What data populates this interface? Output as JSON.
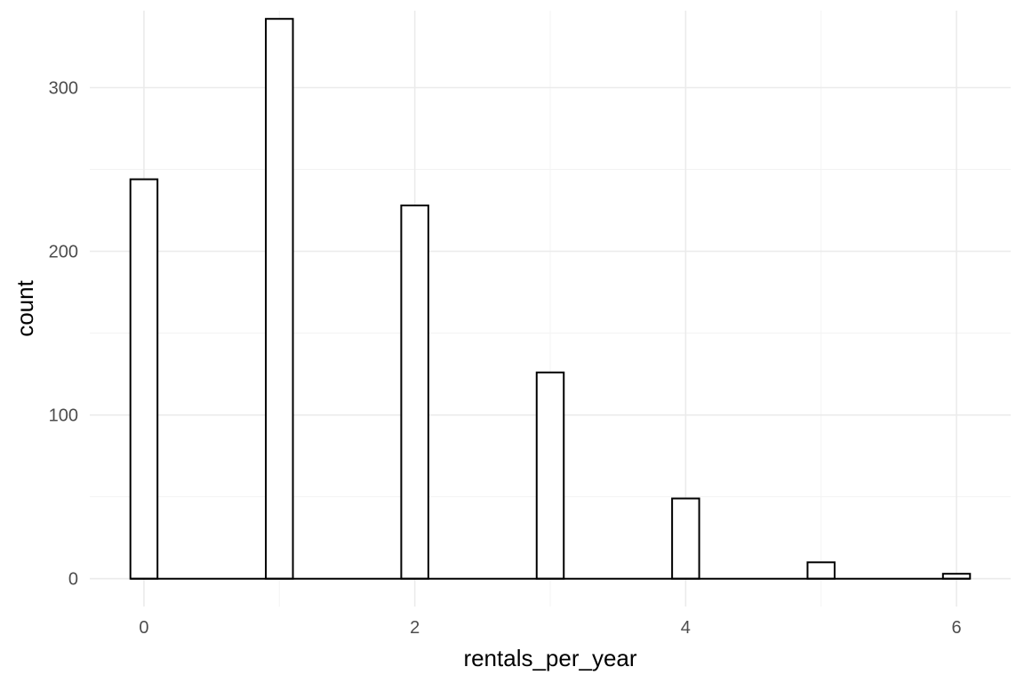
{
  "chart_data": {
    "type": "bar",
    "title": "",
    "xlabel": "rentals_per_year",
    "ylabel": "count",
    "x": [
      0,
      1,
      2,
      3,
      4,
      5,
      6
    ],
    "values": [
      244,
      342,
      228,
      126,
      49,
      10,
      3
    ],
    "bin_width": 0.2,
    "xlim": [
      -0.4,
      6.4
    ],
    "ylim": [
      -17,
      347
    ],
    "x_ticks": [
      0,
      2,
      4,
      6
    ],
    "y_ticks": [
      0,
      100,
      200,
      300
    ],
    "grid": true,
    "legend": "none",
    "colors": {
      "bar_fill": "#ffffff",
      "bar_stroke": "#000000",
      "grid": "#ebebeb"
    }
  }
}
